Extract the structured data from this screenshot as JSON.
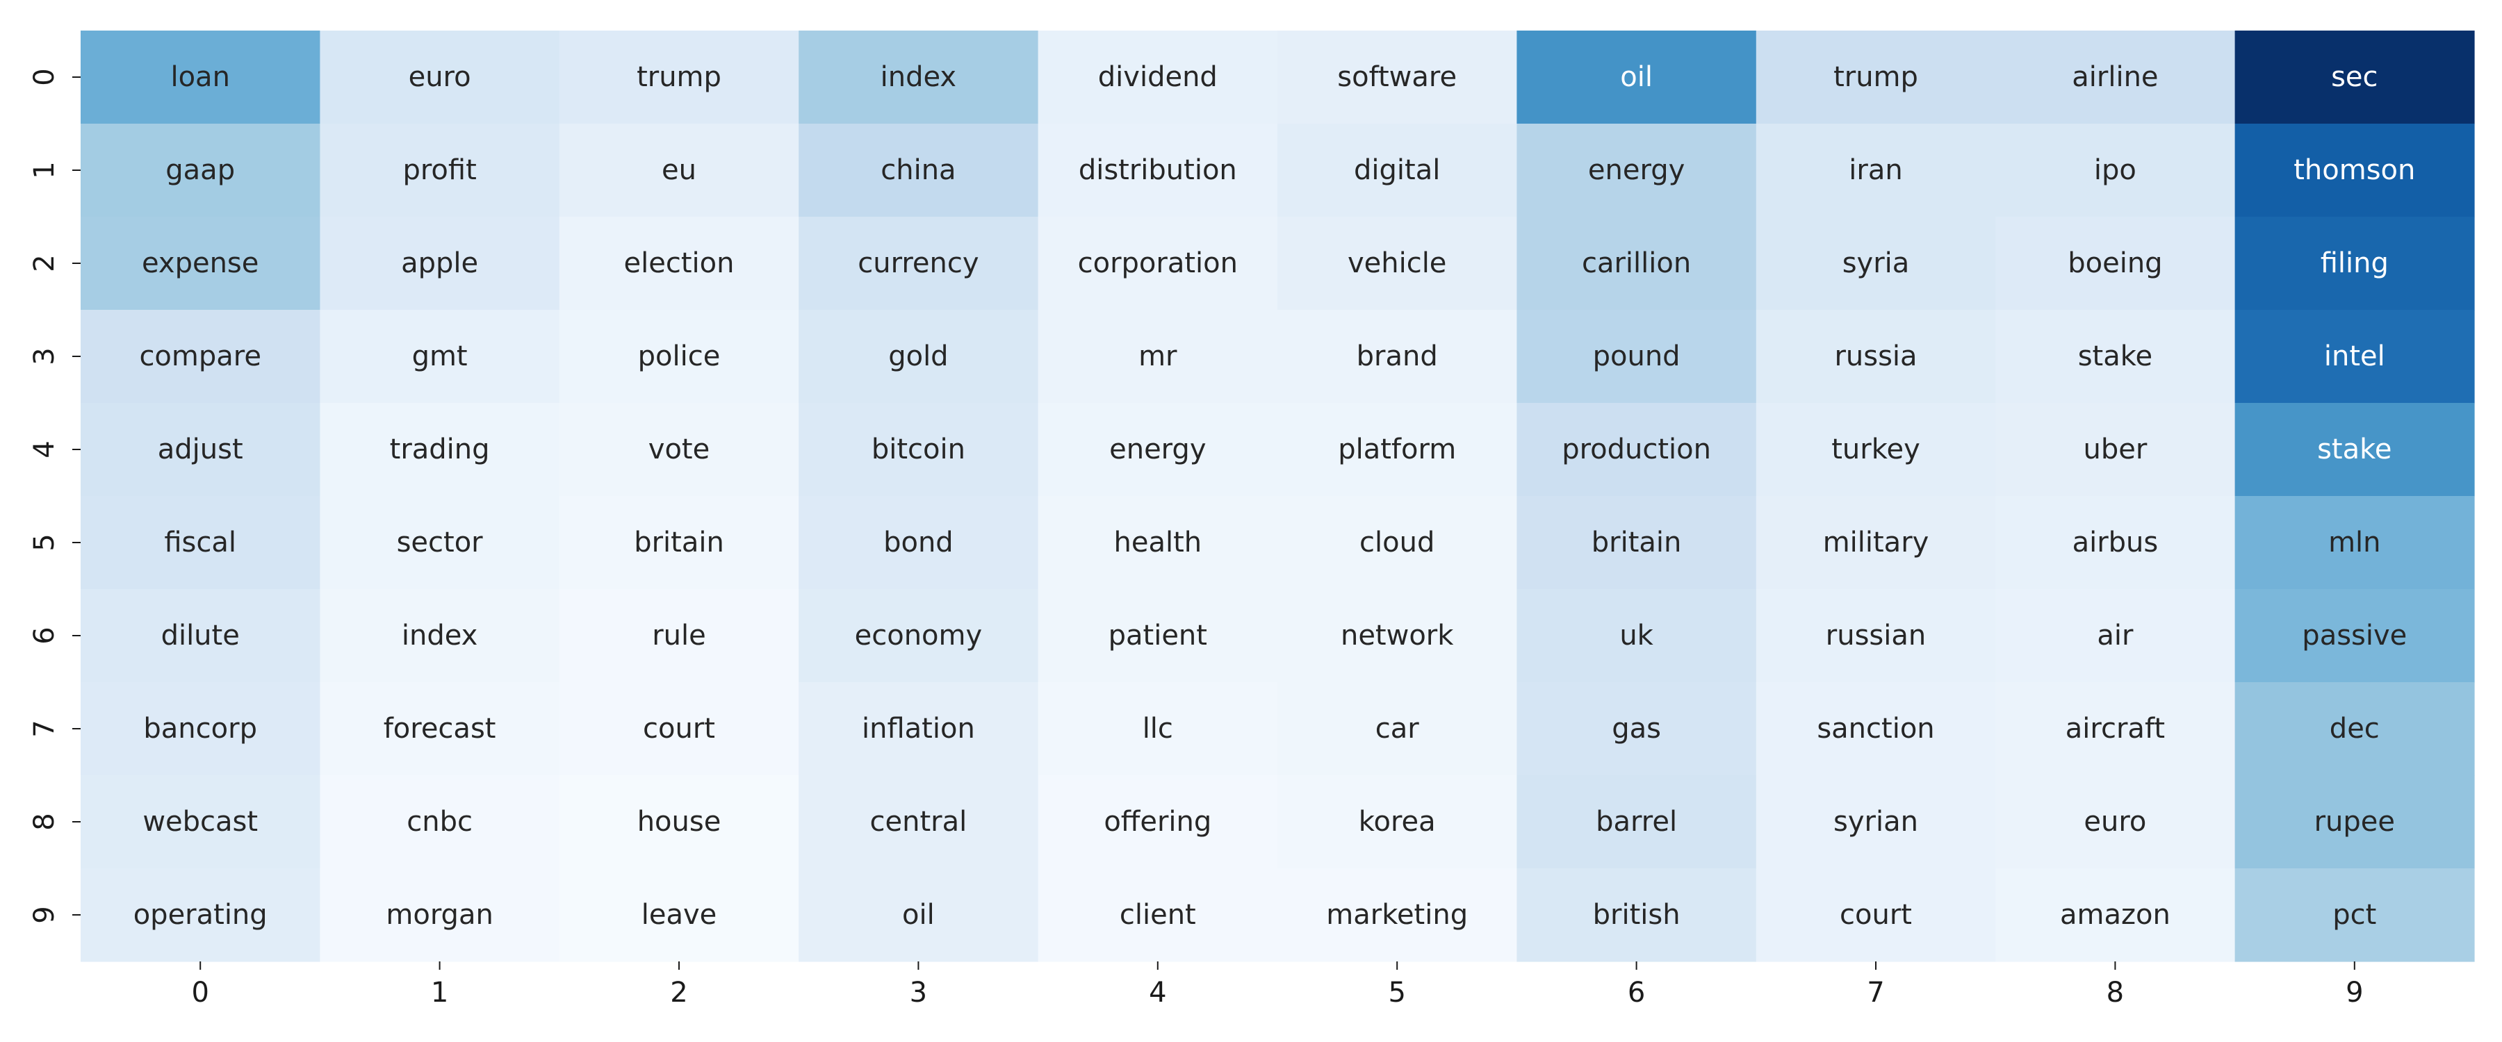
{
  "chart_data": {
    "type": "heatmap",
    "title": "",
    "xlabel": "",
    "ylabel": "",
    "x_ticks": [
      "0",
      "1",
      "2",
      "3",
      "4",
      "5",
      "6",
      "7",
      "8",
      "9"
    ],
    "y_ticks": [
      "0",
      "1",
      "2",
      "3",
      "4",
      "5",
      "6",
      "7",
      "8",
      "9"
    ],
    "colormap": "Blues",
    "colorbar": false,
    "grid": false,
    "words": [
      [
        "loan",
        "euro",
        "trump",
        "index",
        "dividend",
        "software",
        "oil",
        "trump",
        "airline",
        "sec"
      ],
      [
        "gaap",
        "profit",
        "eu",
        "china",
        "distribution",
        "digital",
        "energy",
        "iran",
        "ipo",
        "thomson"
      ],
      [
        "expense",
        "apple",
        "election",
        "currency",
        "corporation",
        "vehicle",
        "carillion",
        "syria",
        "boeing",
        "filing"
      ],
      [
        "compare",
        "gmt",
        "police",
        "gold",
        "mr",
        "brand",
        "pound",
        "russia",
        "stake",
        "intel"
      ],
      [
        "adjust",
        "trading",
        "vote",
        "bitcoin",
        "energy",
        "platform",
        "production",
        "turkey",
        "uber",
        "stake"
      ],
      [
        "fiscal",
        "sector",
        "britain",
        "bond",
        "health",
        "cloud",
        "britain",
        "military",
        "airbus",
        "mln"
      ],
      [
        "dilute",
        "index",
        "rule",
        "economy",
        "patient",
        "network",
        "uk",
        "russian",
        "air",
        "passive"
      ],
      [
        "bancorp",
        "forecast",
        "court",
        "inflation",
        "llc",
        "car",
        "gas",
        "sanction",
        "aircraft",
        "dec"
      ],
      [
        "webcast",
        "cnbc",
        "house",
        "central",
        "offering",
        "korea",
        "barrel",
        "syrian",
        "euro",
        "rupee"
      ],
      [
        "operating",
        "morgan",
        "leave",
        "oil",
        "client",
        "marketing",
        "british",
        "court",
        "amazon",
        "pct"
      ]
    ],
    "values": [
      [
        0.5,
        0.16,
        0.13,
        0.35,
        0.08,
        0.09,
        0.62,
        0.22,
        0.22,
        1.0
      ],
      [
        0.36,
        0.14,
        0.09,
        0.26,
        0.07,
        0.11,
        0.3,
        0.15,
        0.15,
        0.82
      ],
      [
        0.35,
        0.13,
        0.06,
        0.18,
        0.06,
        0.09,
        0.3,
        0.15,
        0.13,
        0.79
      ],
      [
        0.2,
        0.08,
        0.05,
        0.15,
        0.06,
        0.06,
        0.29,
        0.12,
        0.1,
        0.76
      ],
      [
        0.18,
        0.05,
        0.04,
        0.14,
        0.05,
        0.05,
        0.22,
        0.1,
        0.09,
        0.61
      ],
      [
        0.17,
        0.05,
        0.03,
        0.13,
        0.04,
        0.04,
        0.2,
        0.09,
        0.08,
        0.48
      ],
      [
        0.14,
        0.04,
        0.02,
        0.12,
        0.04,
        0.04,
        0.18,
        0.08,
        0.07,
        0.46
      ],
      [
        0.13,
        0.03,
        0.02,
        0.09,
        0.03,
        0.04,
        0.17,
        0.07,
        0.06,
        0.4
      ],
      [
        0.12,
        0.02,
        0.01,
        0.09,
        0.02,
        0.03,
        0.18,
        0.07,
        0.06,
        0.4
      ],
      [
        0.11,
        0.02,
        0.01,
        0.09,
        0.02,
        0.02,
        0.15,
        0.07,
        0.05,
        0.34
      ]
    ]
  }
}
